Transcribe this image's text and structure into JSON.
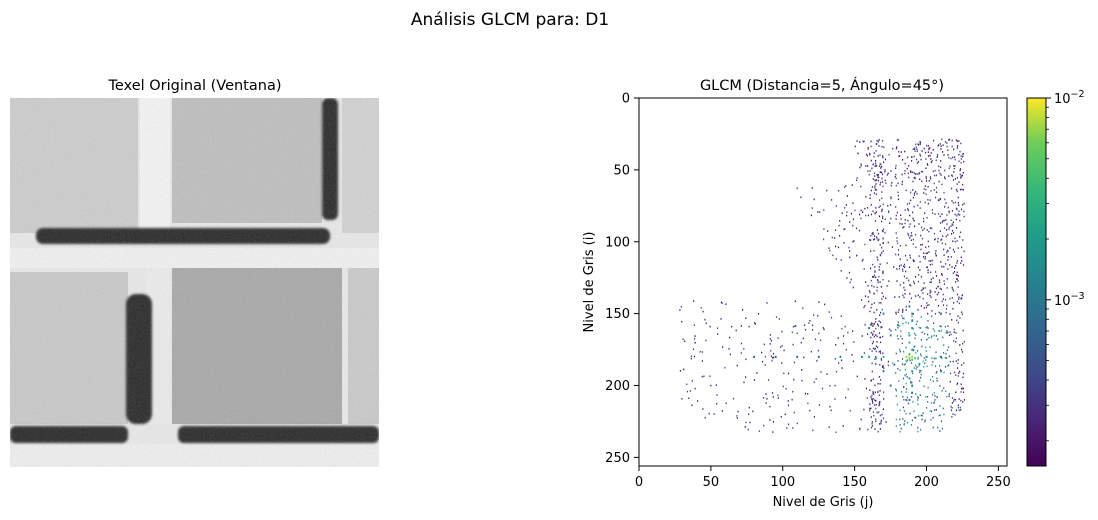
{
  "figure": {
    "suptitle": "Análisis GLCM para: D1"
  },
  "texel_panel": {
    "title": "Texel Original (Ventana)",
    "grayscale": true
  },
  "chart_data": {
    "type": "heatmap",
    "title": "GLCM (Distancia=5, Ángulo=45°)",
    "xlabel": "Nivel de Gris (j)",
    "ylabel": "Nivel de Gris (i)",
    "xlim": [
      0,
      256
    ],
    "ylim": [
      256,
      0
    ],
    "y_inverted": true,
    "xticks": [
      0,
      50,
      100,
      150,
      200,
      250
    ],
    "yticks": [
      0,
      50,
      100,
      150,
      200,
      250
    ],
    "colormap": "viridis",
    "colorscale": "log",
    "colorbar": {
      "range": [
        0.00015,
        0.01
      ],
      "ticks": [
        0.001,
        0.01
      ],
      "tick_labels": [
        {
          "base": "10",
          "exp": "−3"
        },
        {
          "base": "10",
          "exp": "−2"
        }
      ]
    },
    "cells": [
      [
        179,
        188,
        0.0085
      ],
      [
        180,
        186,
        0.0068
      ],
      [
        180,
        190,
        0.0072
      ],
      [
        181,
        188,
        0.0058
      ],
      [
        182,
        190,
        0.005
      ],
      [
        181,
        192,
        0.0046
      ],
      [
        178,
        188,
        0.004
      ],
      [
        183,
        186,
        0.0035
      ],
      [
        170,
        188,
        0.0032
      ],
      [
        165,
        188,
        0.0028
      ],
      [
        180,
        170,
        0.0034
      ],
      [
        181,
        165,
        0.0028
      ],
      [
        180,
        160,
        0.0024
      ],
      [
        180,
        155,
        0.0018
      ],
      [
        175,
        190,
        0.0025
      ],
      [
        185,
        195,
        0.0022
      ],
      [
        190,
        190,
        0.0022
      ],
      [
        195,
        188,
        0.0018
      ],
      [
        200,
        190,
        0.0015
      ],
      [
        205,
        190,
        0.0013
      ],
      [
        210,
        188,
        0.0012
      ],
      [
        160,
        190,
        0.002
      ],
      [
        155,
        190,
        0.0016
      ],
      [
        150,
        190,
        0.0014
      ],
      [
        160,
        160,
        0.0015
      ],
      [
        150,
        170,
        0.0014
      ],
      [
        190,
        170,
        0.0012
      ],
      [
        200,
        175,
        0.0011
      ],
      [
        180,
        200,
        0.0014
      ],
      [
        180,
        210,
        0.0011
      ],
      [
        190,
        210,
        0.0009
      ],
      [
        150,
        210,
        0.0008
      ],
      [
        165,
        175,
        0.0015
      ],
      [
        158,
        180,
        0.0012
      ],
      [
        145,
        188,
        0.0011
      ],
      [
        180,
        140,
        0.0012
      ],
      [
        180,
        125,
        0.001
      ],
      [
        180,
        110,
        0.0009
      ],
      [
        180,
        95,
        0.0008
      ],
      [
        180,
        80,
        0.0007
      ]
    ]
  }
}
